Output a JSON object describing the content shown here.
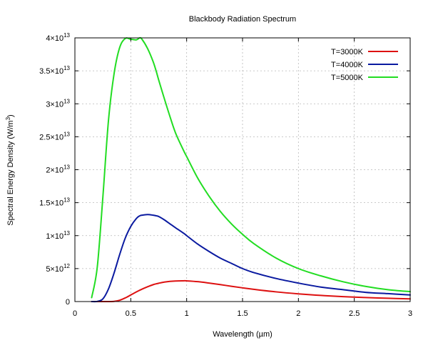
{
  "chart_data": {
    "type": "line",
    "title": "Blackbody Radiation Spectrum",
    "xlabel": "Wavelength (µm)",
    "ylabel": "Spectral Energy Density (W/m³)",
    "ylabel_main": "Spectral Energy Density (W/m",
    "ylabel_sup": "3",
    "ylabel_end": ")",
    "xlim": [
      0,
      3
    ],
    "ylim": [
      0,
      40000000000000
    ],
    "grid": true,
    "legend_position": "top-right",
    "x_ticks": [
      {
        "value": 0,
        "label": "0"
      },
      {
        "value": 0.5,
        "label": "0.5"
      },
      {
        "value": 1,
        "label": "1"
      },
      {
        "value": 1.5,
        "label": "1.5"
      },
      {
        "value": 2,
        "label": "2"
      },
      {
        "value": 2.5,
        "label": "2.5"
      },
      {
        "value": 3,
        "label": "3"
      }
    ],
    "y_ticks": [
      {
        "value": 0,
        "mantissa": "0",
        "exponent": ""
      },
      {
        "value": 5000000000000,
        "mantissa": "5×10",
        "exponent": "12"
      },
      {
        "value": 10000000000000,
        "mantissa": "1×10",
        "exponent": "13"
      },
      {
        "value": 15000000000000,
        "mantissa": "1.5×10",
        "exponent": "13"
      },
      {
        "value": 20000000000000,
        "mantissa": "2×10",
        "exponent": "13"
      },
      {
        "value": 25000000000000,
        "mantissa": "2.5×10",
        "exponent": "13"
      },
      {
        "value": 30000000000000,
        "mantissa": "3×10",
        "exponent": "13"
      },
      {
        "value": 35000000000000,
        "mantissa": "3.5×10",
        "exponent": "13"
      },
      {
        "value": 40000000000000,
        "mantissa": "4×10",
        "exponent": "13"
      }
    ],
    "x": [
      0.15,
      0.2,
      0.25,
      0.3,
      0.35,
      0.4,
      0.45,
      0.5,
      0.55,
      0.58,
      0.6,
      0.65,
      0.7,
      0.73,
      0.75,
      0.8,
      0.85,
      0.9,
      0.97,
      1.0,
      1.1,
      1.2,
      1.3,
      1.4,
      1.5,
      1.6,
      1.8,
      2.0,
      2.2,
      2.4,
      2.6,
      2.8,
      3.0
    ],
    "series": [
      {
        "name": "T=3000K",
        "color": "#dd1111",
        "values": [
          0,
          0,
          0,
          1000000000.0,
          30000000000.0,
          200000000000.0,
          550000000000.0,
          1000000000000.0,
          1460000000000.0,
          1720000000000.0,
          1880000000000.0,
          2240000000000.0,
          2560000000000.0,
          2700000000000.0,
          2780000000000.0,
          2950000000000.0,
          3060000000000.0,
          3120000000000.0,
          3150000000000.0,
          3140000000000.0,
          3020000000000.0,
          2810000000000.0,
          2570000000000.0,
          2320000000000.0,
          2080000000000.0,
          1860000000000.0,
          1470000000000.0,
          1170000000000.0,
          930000000000.0,
          750000000000.0,
          610000000000.0,
          500000000000.0,
          410000000000.0
        ]
      },
      {
        "name": "T=4000K",
        "color": "#0a1aa0",
        "values": [
          0,
          20000000000.0,
          400000000000.0,
          1900000000000.0,
          4300000000000.0,
          7100000000000.0,
          9600000000000.0,
          11400000000000.0,
          12600000000000.0,
          13000000000000.0,
          13100000000000.0,
          13200000000000.0,
          13100000000000.0,
          13000000000000.0,
          12900000000000.0,
          12400000000000.0,
          11800000000000.0,
          11200000000000.0,
          10400000000000.0,
          10000000000000.0,
          8700000000000.0,
          7600000000000.0,
          6600000000000.0,
          5800000000000.0,
          5000000000000.0,
          4400000000000.0,
          3500000000000.0,
          2800000000000.0,
          2200000000000.0,
          1800000000000.0,
          1400000000000.0,
          1200000000000.0,
          1000000000000.0
        ]
      },
      {
        "name": "T=5000K",
        "color": "#22dd22",
        "values": [
          600000000000.0,
          5200000000000.0,
          15800000000000.0,
          27400000000000.0,
          34500000000000.0,
          38500000000000.0,
          39900000000000.0,
          39800000000000.0,
          39700000000000.0,
          40000000000000.0,
          39800000000000.0,
          38400000000000.0,
          36400000000000.0,
          34800000000000.0,
          33600000000000.0,
          30800000000000.0,
          28100000000000.0,
          25600000000000.0,
          23000000000000.0,
          22000000000000.0,
          18700000000000.0,
          16000000000000.0,
          13700000000000.0,
          11800000000000.0,
          10200000000000.0,
          8800000000000.0,
          6600000000000.0,
          5000000000000.0,
          3900000000000.0,
          3000000000000.0,
          2300000000000.0,
          1800000000000.0,
          1500000000000.0
        ]
      }
    ]
  }
}
